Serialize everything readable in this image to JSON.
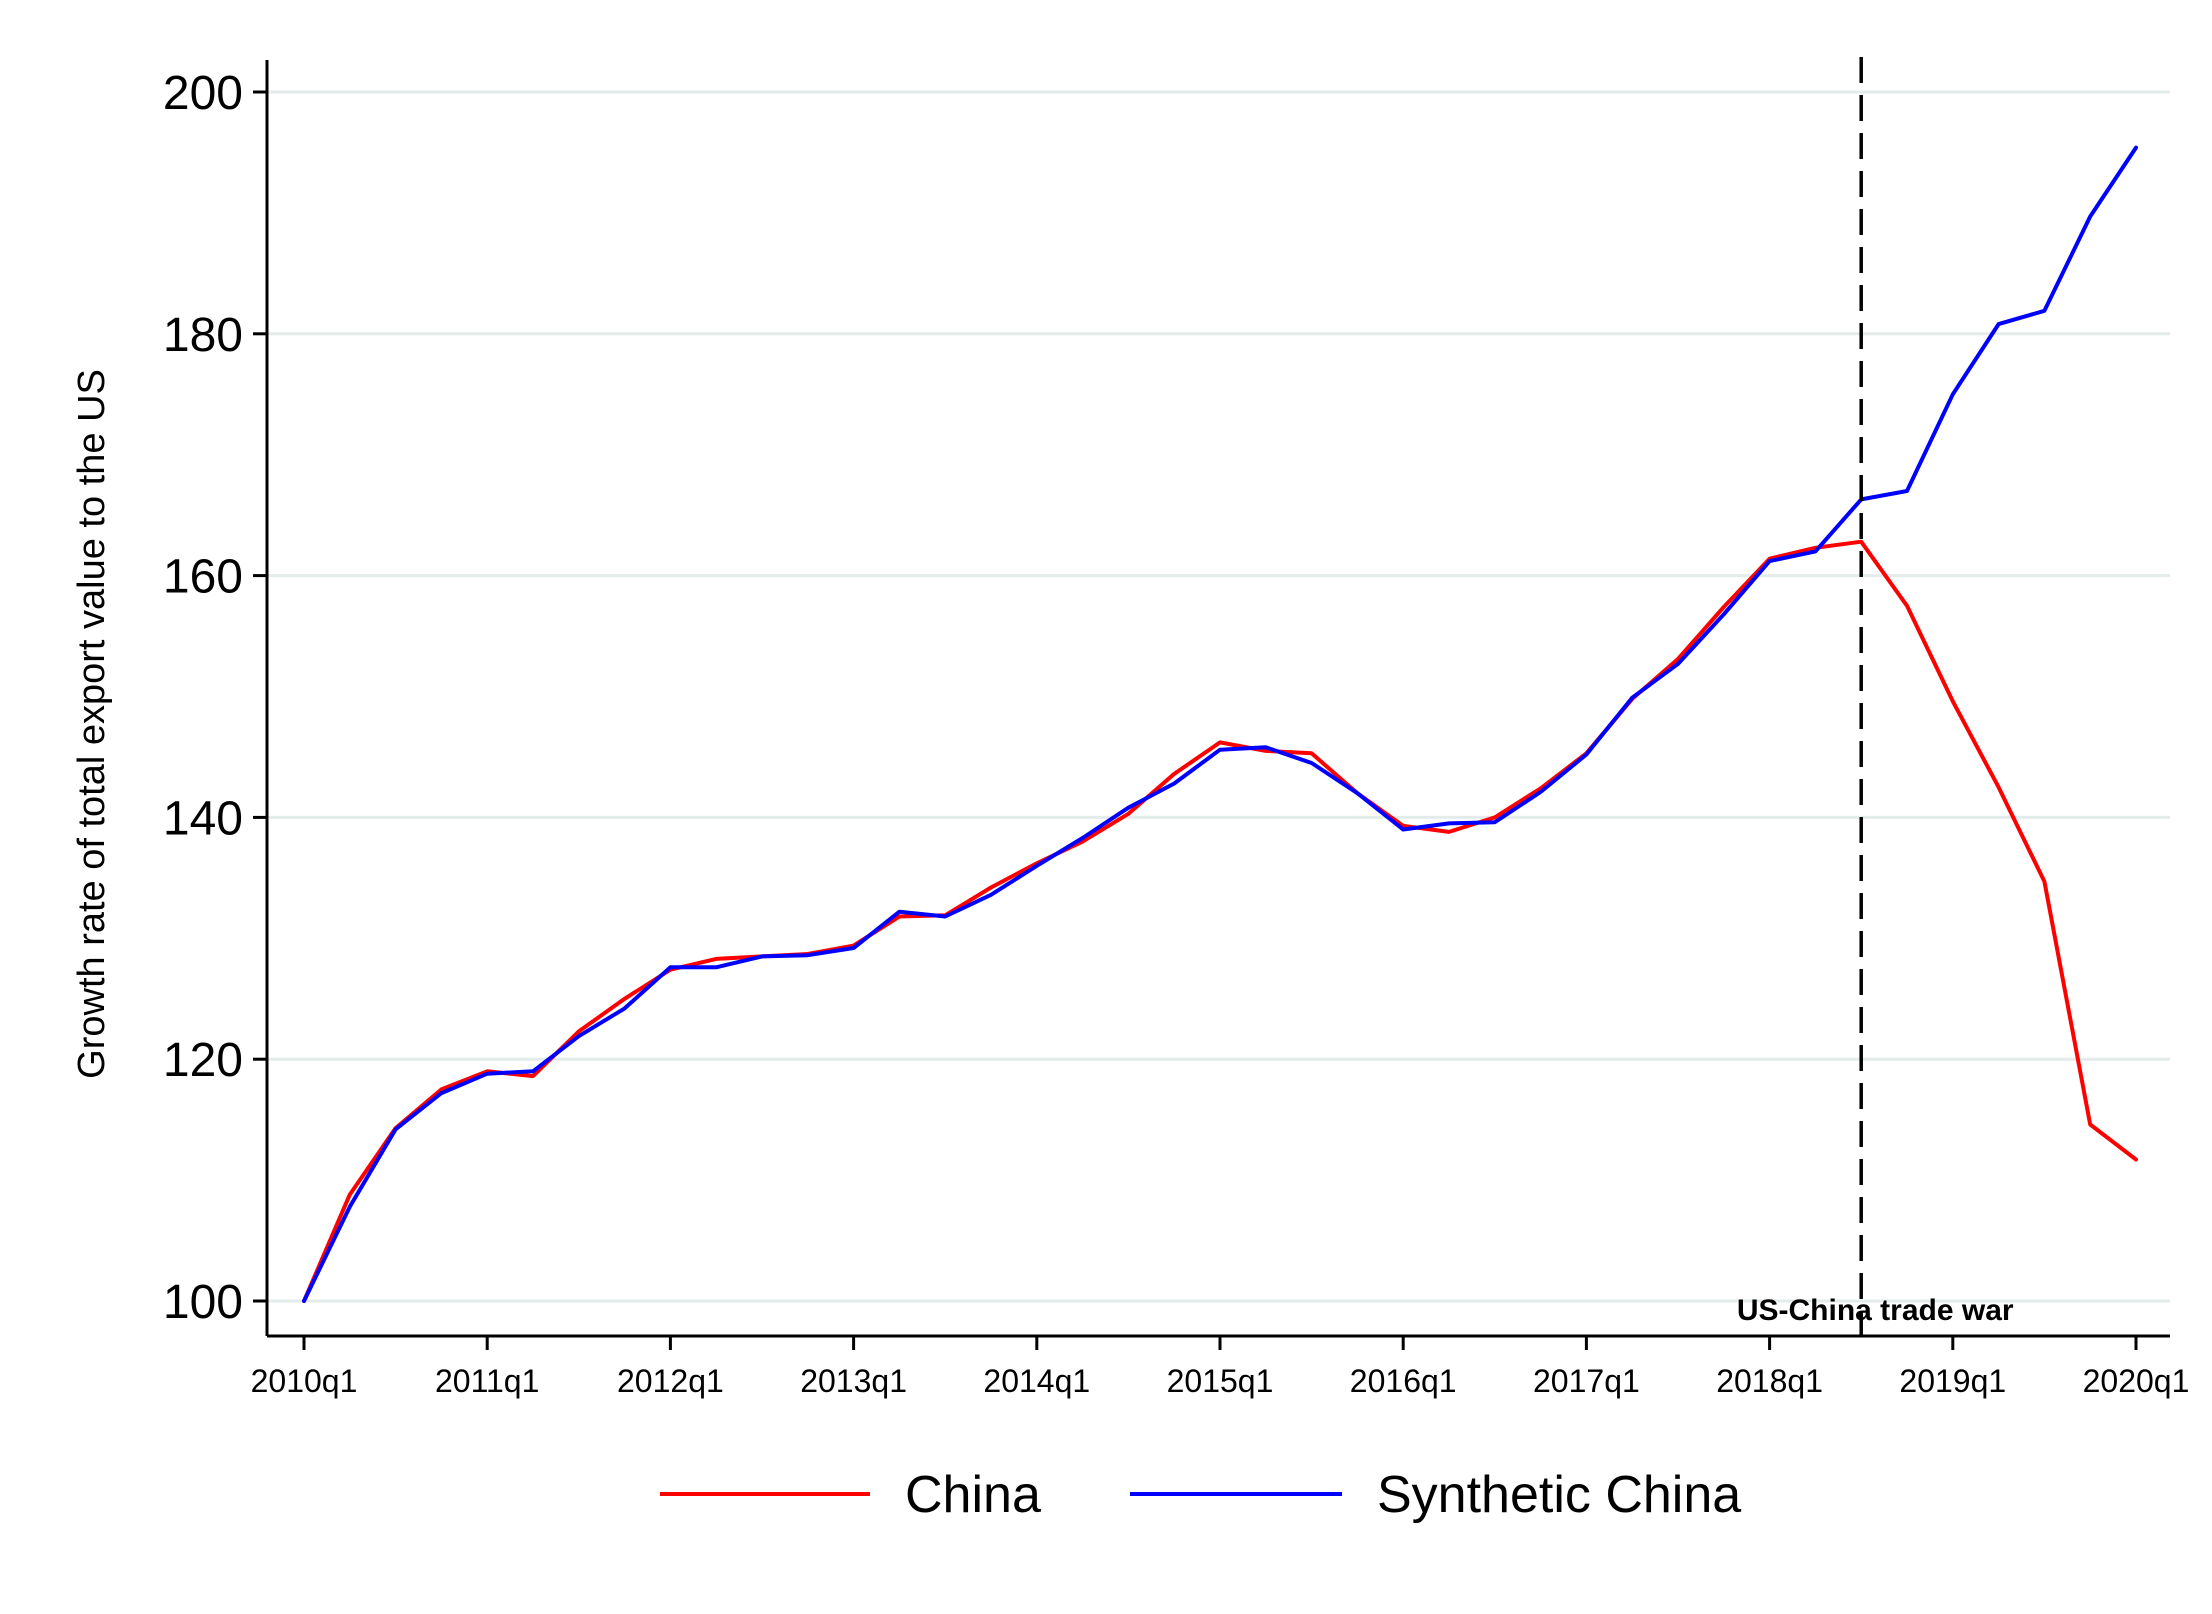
{
  "chart_data": {
    "type": "line",
    "title": "",
    "xlabel": "",
    "ylabel": "Growth rate of total export value to the US",
    "ylim": [
      100,
      200
    ],
    "yticks": [
      "100",
      "120",
      "140",
      "160",
      "180",
      "200"
    ],
    "xticks": [
      "2010q1",
      "2011q1",
      "2012q1",
      "2013q1",
      "2014q1",
      "2015q1",
      "2016q1",
      "2017q1",
      "2018q1",
      "2019q1",
      "2020q1"
    ],
    "x": [
      "2010q1",
      "2010q2",
      "2010q3",
      "2010q4",
      "2011q1",
      "2011q2",
      "2011q3",
      "2011q4",
      "2012q1",
      "2012q2",
      "2012q3",
      "2012q4",
      "2013q1",
      "2013q2",
      "2013q3",
      "2013q4",
      "2014q1",
      "2014q2",
      "2014q3",
      "2014q4",
      "2015q1",
      "2015q2",
      "2015q3",
      "2015q4",
      "2016q1",
      "2016q2",
      "2016q3",
      "2016q4",
      "2017q1",
      "2017q2",
      "2017q3",
      "2017q4",
      "2018q1",
      "2018q2",
      "2018q3",
      "2018q4",
      "2019q1",
      "2019q2",
      "2019q3",
      "2019q4",
      "2020q1"
    ],
    "grid": true,
    "legend_position": "bottom",
    "series": [
      {
        "name": "China",
        "color": "#ff0000",
        "values": [
          100,
          108.8,
          114.3,
          117.5,
          119,
          118.6,
          122.3,
          125,
          127.4,
          128.3,
          128.5,
          128.7,
          129.4,
          131.8,
          131.9,
          134.2,
          136.2,
          138,
          140.3,
          143.6,
          146.2,
          145.5,
          145.3,
          142,
          139.3,
          138.8,
          140,
          142.4,
          145.3,
          149.8,
          153.1,
          157.4,
          161.4,
          162.3,
          162.8,
          157.5,
          149.6,
          142.5,
          134.7,
          114.6,
          111.7
        ]
      },
      {
        "name": "Synthetic China",
        "color": "#0000ff",
        "values": [
          100,
          107.8,
          114.2,
          117.2,
          118.8,
          119,
          121.9,
          124.2,
          127.6,
          127.6,
          128.5,
          128.6,
          129.2,
          132.2,
          131.8,
          133.6,
          136,
          138.3,
          140.8,
          142.8,
          145.6,
          145.8,
          144.5,
          142,
          139,
          139.5,
          139.6,
          142.1,
          145.2,
          149.9,
          152.7,
          156.8,
          161.2,
          162,
          166.3,
          167,
          175,
          180.8,
          181.9,
          189.7,
          195.4
        ]
      }
    ],
    "annotations": [
      {
        "text": "US-China trade war",
        "x": "2018q3",
        "style": "dashed vertical line"
      }
    ]
  }
}
